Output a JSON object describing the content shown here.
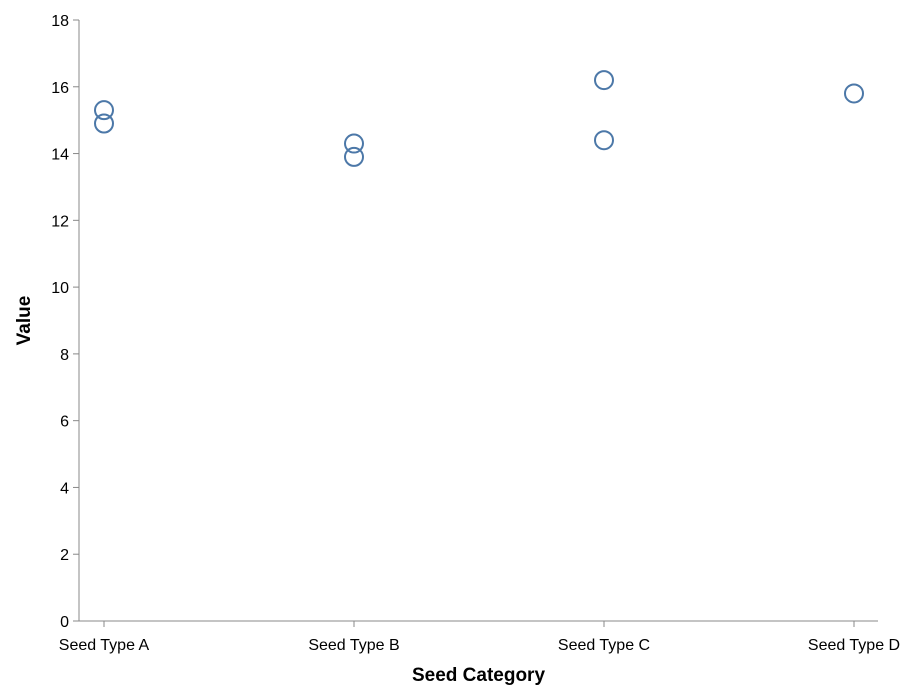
{
  "chart_data": {
    "type": "scatter",
    "xlabel": "Seed Category",
    "ylabel": "Value",
    "categories": [
      "Seed Type A",
      "Seed Type B",
      "Seed Type C",
      "Seed Type D"
    ],
    "ylim": [
      0,
      18
    ],
    "yticks": [
      0,
      2,
      4,
      6,
      8,
      10,
      12,
      14,
      16,
      18
    ],
    "grid": false,
    "point_color": "#4c78a8",
    "points": [
      {
        "category": "Seed Type A",
        "value": 15.3
      },
      {
        "category": "Seed Type A",
        "value": 14.9
      },
      {
        "category": "Seed Type B",
        "value": 14.3
      },
      {
        "category": "Seed Type B",
        "value": 13.9
      },
      {
        "category": "Seed Type C",
        "value": 16.2
      },
      {
        "category": "Seed Type C",
        "value": 14.4
      },
      {
        "category": "Seed Type D",
        "value": 15.8
      }
    ]
  }
}
